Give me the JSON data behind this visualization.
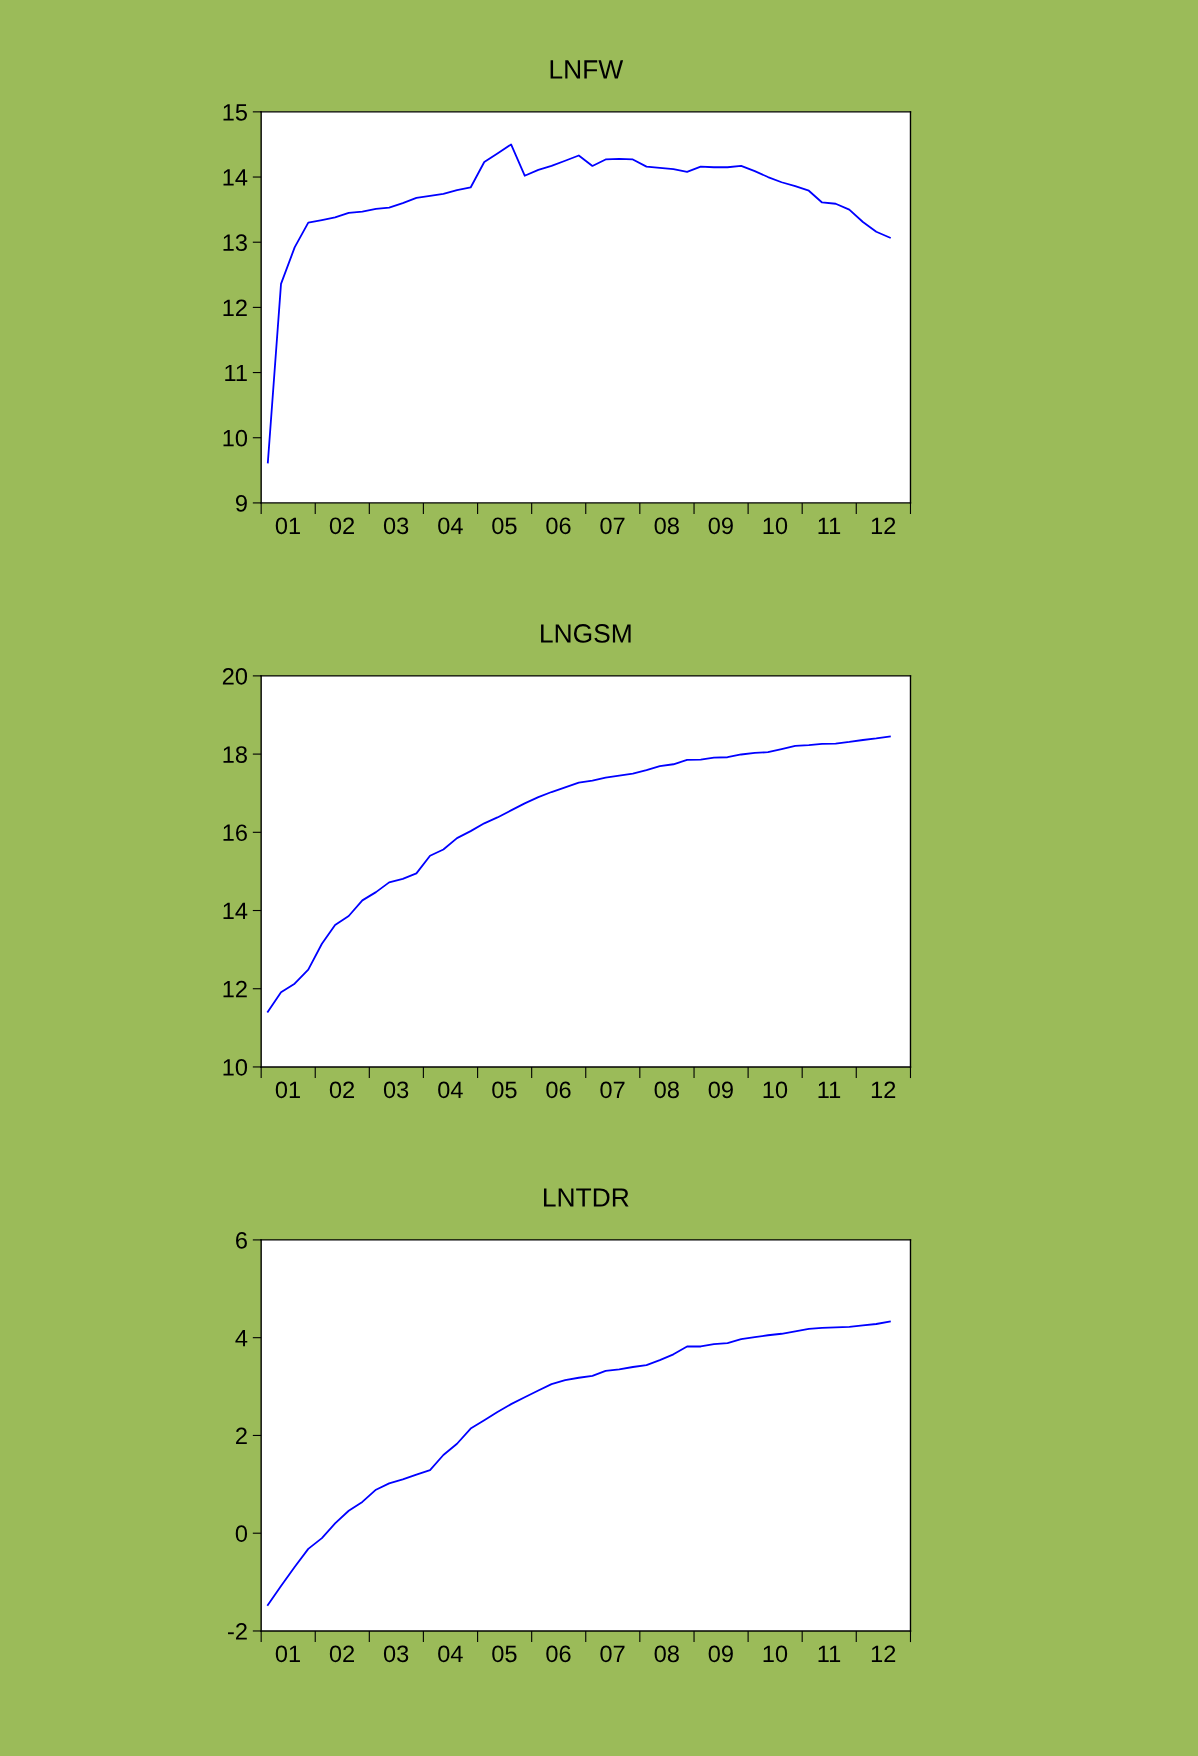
{
  "chart_data": [
    {
      "type": "line",
      "title": "LNFW",
      "x": [
        "2001-02-15",
        "2001-05-15",
        "2001-08-15",
        "2001-11-15",
        "2002-02-15",
        "2002-05-15",
        "2002-08-15",
        "2002-11-15",
        "2003-02-15",
        "2003-05-15",
        "2003-08-15",
        "2003-11-15",
        "2004-02-15",
        "2004-05-15",
        "2004-08-15",
        "2004-11-15",
        "2005-02-15",
        "2005-05-15",
        "2005-08-15",
        "2005-11-15",
        "2006-02-15",
        "2006-05-15",
        "2006-08-15",
        "2006-11-15",
        "2007-02-15",
        "2007-05-15",
        "2007-08-15",
        "2007-11-15",
        "2008-02-15",
        "2008-05-15",
        "2008-08-15",
        "2008-11-15",
        "2009-02-15",
        "2009-05-15",
        "2009-08-15",
        "2009-11-15",
        "2010-02-15",
        "2010-05-15",
        "2010-08-15",
        "2010-11-15",
        "2011-02-15",
        "2011-05-15",
        "2011-08-15",
        "2011-11-15",
        "2012-02-15",
        "2012-05-15",
        "2012-08-15"
      ],
      "xlim": [
        "2001-01-01",
        "2013-01-01"
      ],
      "ylim": [
        9,
        15
      ],
      "yticks": [
        9,
        10,
        11,
        12,
        13,
        14,
        15
      ],
      "color": "#0000ff",
      "grid": false,
      "legend": false,
      "xticks": [
        {
          "value": "2001-01-01",
          "label": null
        },
        {
          "value": "2001-07-01",
          "label": "01"
        },
        {
          "value": "2002-01-01",
          "label": null
        },
        {
          "value": "2002-07-01",
          "label": "02"
        },
        {
          "value": "2003-01-01",
          "label": null
        },
        {
          "value": "2003-07-01",
          "label": "03"
        },
        {
          "value": "2004-01-01",
          "label": null
        },
        {
          "value": "2004-07-01",
          "label": "04"
        },
        {
          "value": "2005-01-01",
          "label": null
        },
        {
          "value": "2005-07-01",
          "label": "05"
        },
        {
          "value": "2006-01-01",
          "label": null
        },
        {
          "value": "2006-07-01",
          "label": "06"
        },
        {
          "value": "2007-01-01",
          "label": null
        },
        {
          "value": "2007-07-01",
          "label": "07"
        },
        {
          "value": "2008-01-01",
          "label": null
        },
        {
          "value": "2008-07-01",
          "label": "08"
        },
        {
          "value": "2009-01-01",
          "label": null
        },
        {
          "value": "2009-07-01",
          "label": "09"
        },
        {
          "value": "2010-01-01",
          "label": null
        },
        {
          "value": "2010-07-01",
          "label": "10"
        },
        {
          "value": "2011-01-01",
          "label": null
        },
        {
          "value": "2011-07-01",
          "label": "11"
        },
        {
          "value": "2012-01-01",
          "label": null
        },
        {
          "value": "2012-07-01",
          "label": "12"
        },
        {
          "value": "2013-01-01",
          "label": null
        }
      ],
      "values": [
        9.62,
        12.36,
        12.92,
        13.3,
        13.34,
        13.38,
        13.45,
        13.47,
        13.51,
        13.53,
        13.6,
        13.68,
        13.71,
        13.74,
        13.8,
        13.84,
        14.23,
        14.36,
        14.5,
        14.02,
        14.11,
        14.17,
        14.25,
        14.33,
        14.17,
        14.27,
        14.28,
        14.27,
        14.16,
        14.14,
        14.12,
        14.08,
        14.16,
        14.15,
        14.15,
        14.17,
        14.09,
        14.0,
        13.92,
        13.86,
        13.79,
        13.61,
        13.59,
        13.5,
        13.31,
        13.16,
        13.07
      ]
    },
    {
      "type": "line",
      "title": "LNGSM",
      "x": [
        "2001-02-15",
        "2001-05-15",
        "2001-08-15",
        "2001-11-15",
        "2002-02-15",
        "2002-05-15",
        "2002-08-15",
        "2002-11-15",
        "2003-02-15",
        "2003-05-15",
        "2003-08-15",
        "2003-11-15",
        "2004-02-15",
        "2004-05-15",
        "2004-08-15",
        "2004-11-15",
        "2005-02-15",
        "2005-05-15",
        "2005-08-15",
        "2005-11-15",
        "2006-02-15",
        "2006-05-15",
        "2006-08-15",
        "2006-11-15",
        "2007-02-15",
        "2007-05-15",
        "2007-08-15",
        "2007-11-15",
        "2008-02-15",
        "2008-05-15",
        "2008-08-15",
        "2008-11-15",
        "2009-02-15",
        "2009-05-15",
        "2009-08-15",
        "2009-11-15",
        "2010-02-15",
        "2010-05-15",
        "2010-08-15",
        "2010-11-15",
        "2011-02-15",
        "2011-05-15",
        "2011-08-15",
        "2011-11-15",
        "2012-02-15",
        "2012-05-15",
        "2012-08-15"
      ],
      "xlim": [
        "2001-01-01",
        "2013-01-01"
      ],
      "ylim": [
        10,
        20
      ],
      "yticks": [
        10,
        12,
        14,
        16,
        18,
        20
      ],
      "color": "#0000ff",
      "grid": false,
      "legend": false,
      "xticks": [
        {
          "value": "2001-01-01",
          "label": null
        },
        {
          "value": "2001-07-01",
          "label": "01"
        },
        {
          "value": "2002-01-01",
          "label": null
        },
        {
          "value": "2002-07-01",
          "label": "02"
        },
        {
          "value": "2003-01-01",
          "label": null
        },
        {
          "value": "2003-07-01",
          "label": "03"
        },
        {
          "value": "2004-01-01",
          "label": null
        },
        {
          "value": "2004-07-01",
          "label": "04"
        },
        {
          "value": "2005-01-01",
          "label": null
        },
        {
          "value": "2005-07-01",
          "label": "05"
        },
        {
          "value": "2006-01-01",
          "label": null
        },
        {
          "value": "2006-07-01",
          "label": "06"
        },
        {
          "value": "2007-01-01",
          "label": null
        },
        {
          "value": "2007-07-01",
          "label": "07"
        },
        {
          "value": "2008-01-01",
          "label": null
        },
        {
          "value": "2008-07-01",
          "label": "08"
        },
        {
          "value": "2009-01-01",
          "label": null
        },
        {
          "value": "2009-07-01",
          "label": "09"
        },
        {
          "value": "2010-01-01",
          "label": null
        },
        {
          "value": "2010-07-01",
          "label": "10"
        },
        {
          "value": "2011-01-01",
          "label": null
        },
        {
          "value": "2011-07-01",
          "label": "11"
        },
        {
          "value": "2012-01-01",
          "label": null
        },
        {
          "value": "2012-07-01",
          "label": "12"
        },
        {
          "value": "2013-01-01",
          "label": null
        }
      ],
      "values": [
        11.41,
        11.91,
        12.13,
        12.49,
        13.15,
        13.63,
        13.86,
        14.26,
        14.47,
        14.72,
        14.81,
        14.95,
        15.4,
        15.56,
        15.85,
        16.03,
        16.23,
        16.38,
        16.56,
        16.74,
        16.9,
        17.03,
        17.15,
        17.27,
        17.32,
        17.4,
        17.45,
        17.5,
        17.59,
        17.69,
        17.74,
        17.85,
        17.86,
        17.91,
        17.92,
        17.99,
        18.03,
        18.05,
        18.13,
        18.21,
        18.23,
        18.26,
        18.27,
        18.31,
        18.36,
        18.4,
        18.45
      ]
    },
    {
      "type": "line",
      "title": "LNTDR",
      "x": [
        "2001-02-15",
        "2001-05-15",
        "2001-08-15",
        "2001-11-15",
        "2002-02-15",
        "2002-05-15",
        "2002-08-15",
        "2002-11-15",
        "2003-02-15",
        "2003-05-15",
        "2003-08-15",
        "2003-11-15",
        "2004-02-15",
        "2004-05-15",
        "2004-08-15",
        "2004-11-15",
        "2005-02-15",
        "2005-05-15",
        "2005-08-15",
        "2005-11-15",
        "2006-02-15",
        "2006-05-15",
        "2006-08-15",
        "2006-11-15",
        "2007-02-15",
        "2007-05-15",
        "2007-08-15",
        "2007-11-15",
        "2008-02-15",
        "2008-05-15",
        "2008-08-15",
        "2008-11-15",
        "2009-02-15",
        "2009-05-15",
        "2009-08-15",
        "2009-11-15",
        "2010-02-15",
        "2010-05-15",
        "2010-08-15",
        "2010-11-15",
        "2011-02-15",
        "2011-05-15",
        "2011-08-15",
        "2011-11-15",
        "2012-02-15",
        "2012-05-15",
        "2012-08-15"
      ],
      "xlim": [
        "2001-01-01",
        "2013-01-01"
      ],
      "ylim": [
        -2,
        6
      ],
      "yticks": [
        {
          "value": -2,
          "label": "-2"
        },
        0,
        2,
        4,
        6
      ],
      "color": "#0000ff",
      "grid": false,
      "legend": false,
      "xticks": [
        {
          "value": "2001-01-01",
          "label": null
        },
        {
          "value": "2001-07-01",
          "label": "01"
        },
        {
          "value": "2002-01-01",
          "label": null
        },
        {
          "value": "2002-07-01",
          "label": "02"
        },
        {
          "value": "2003-01-01",
          "label": null
        },
        {
          "value": "2003-07-01",
          "label": "03"
        },
        {
          "value": "2004-01-01",
          "label": null
        },
        {
          "value": "2004-07-01",
          "label": "04"
        },
        {
          "value": "2005-01-01",
          "label": null
        },
        {
          "value": "2005-07-01",
          "label": "05"
        },
        {
          "value": "2006-01-01",
          "label": null
        },
        {
          "value": "2006-07-01",
          "label": "06"
        },
        {
          "value": "2007-01-01",
          "label": null
        },
        {
          "value": "2007-07-01",
          "label": "07"
        },
        {
          "value": "2008-01-01",
          "label": null
        },
        {
          "value": "2008-07-01",
          "label": "08"
        },
        {
          "value": "2009-01-01",
          "label": null
        },
        {
          "value": "2009-07-01",
          "label": "09"
        },
        {
          "value": "2010-01-01",
          "label": null
        },
        {
          "value": "2010-07-01",
          "label": "10"
        },
        {
          "value": "2011-01-01",
          "label": null
        },
        {
          "value": "2011-07-01",
          "label": "11"
        },
        {
          "value": "2012-01-01",
          "label": null
        },
        {
          "value": "2012-07-01",
          "label": "12"
        },
        {
          "value": "2013-01-01",
          "label": null
        }
      ],
      "values": [
        -1.47,
        -1.08,
        -0.69,
        -0.32,
        -0.1,
        0.2,
        0.46,
        0.64,
        0.89,
        1.02,
        1.1,
        1.2,
        1.29,
        1.6,
        1.83,
        2.14,
        2.31,
        2.48,
        2.64,
        2.78,
        2.92,
        3.05,
        3.13,
        3.18,
        3.22,
        3.32,
        3.35,
        3.4,
        3.44,
        3.54,
        3.66,
        3.82,
        3.82,
        3.87,
        3.89,
        3.97,
        4.01,
        4.05,
        4.08,
        4.13,
        4.18,
        4.2,
        4.21,
        4.22,
        4.25,
        4.28,
        4.33
      ]
    }
  ]
}
